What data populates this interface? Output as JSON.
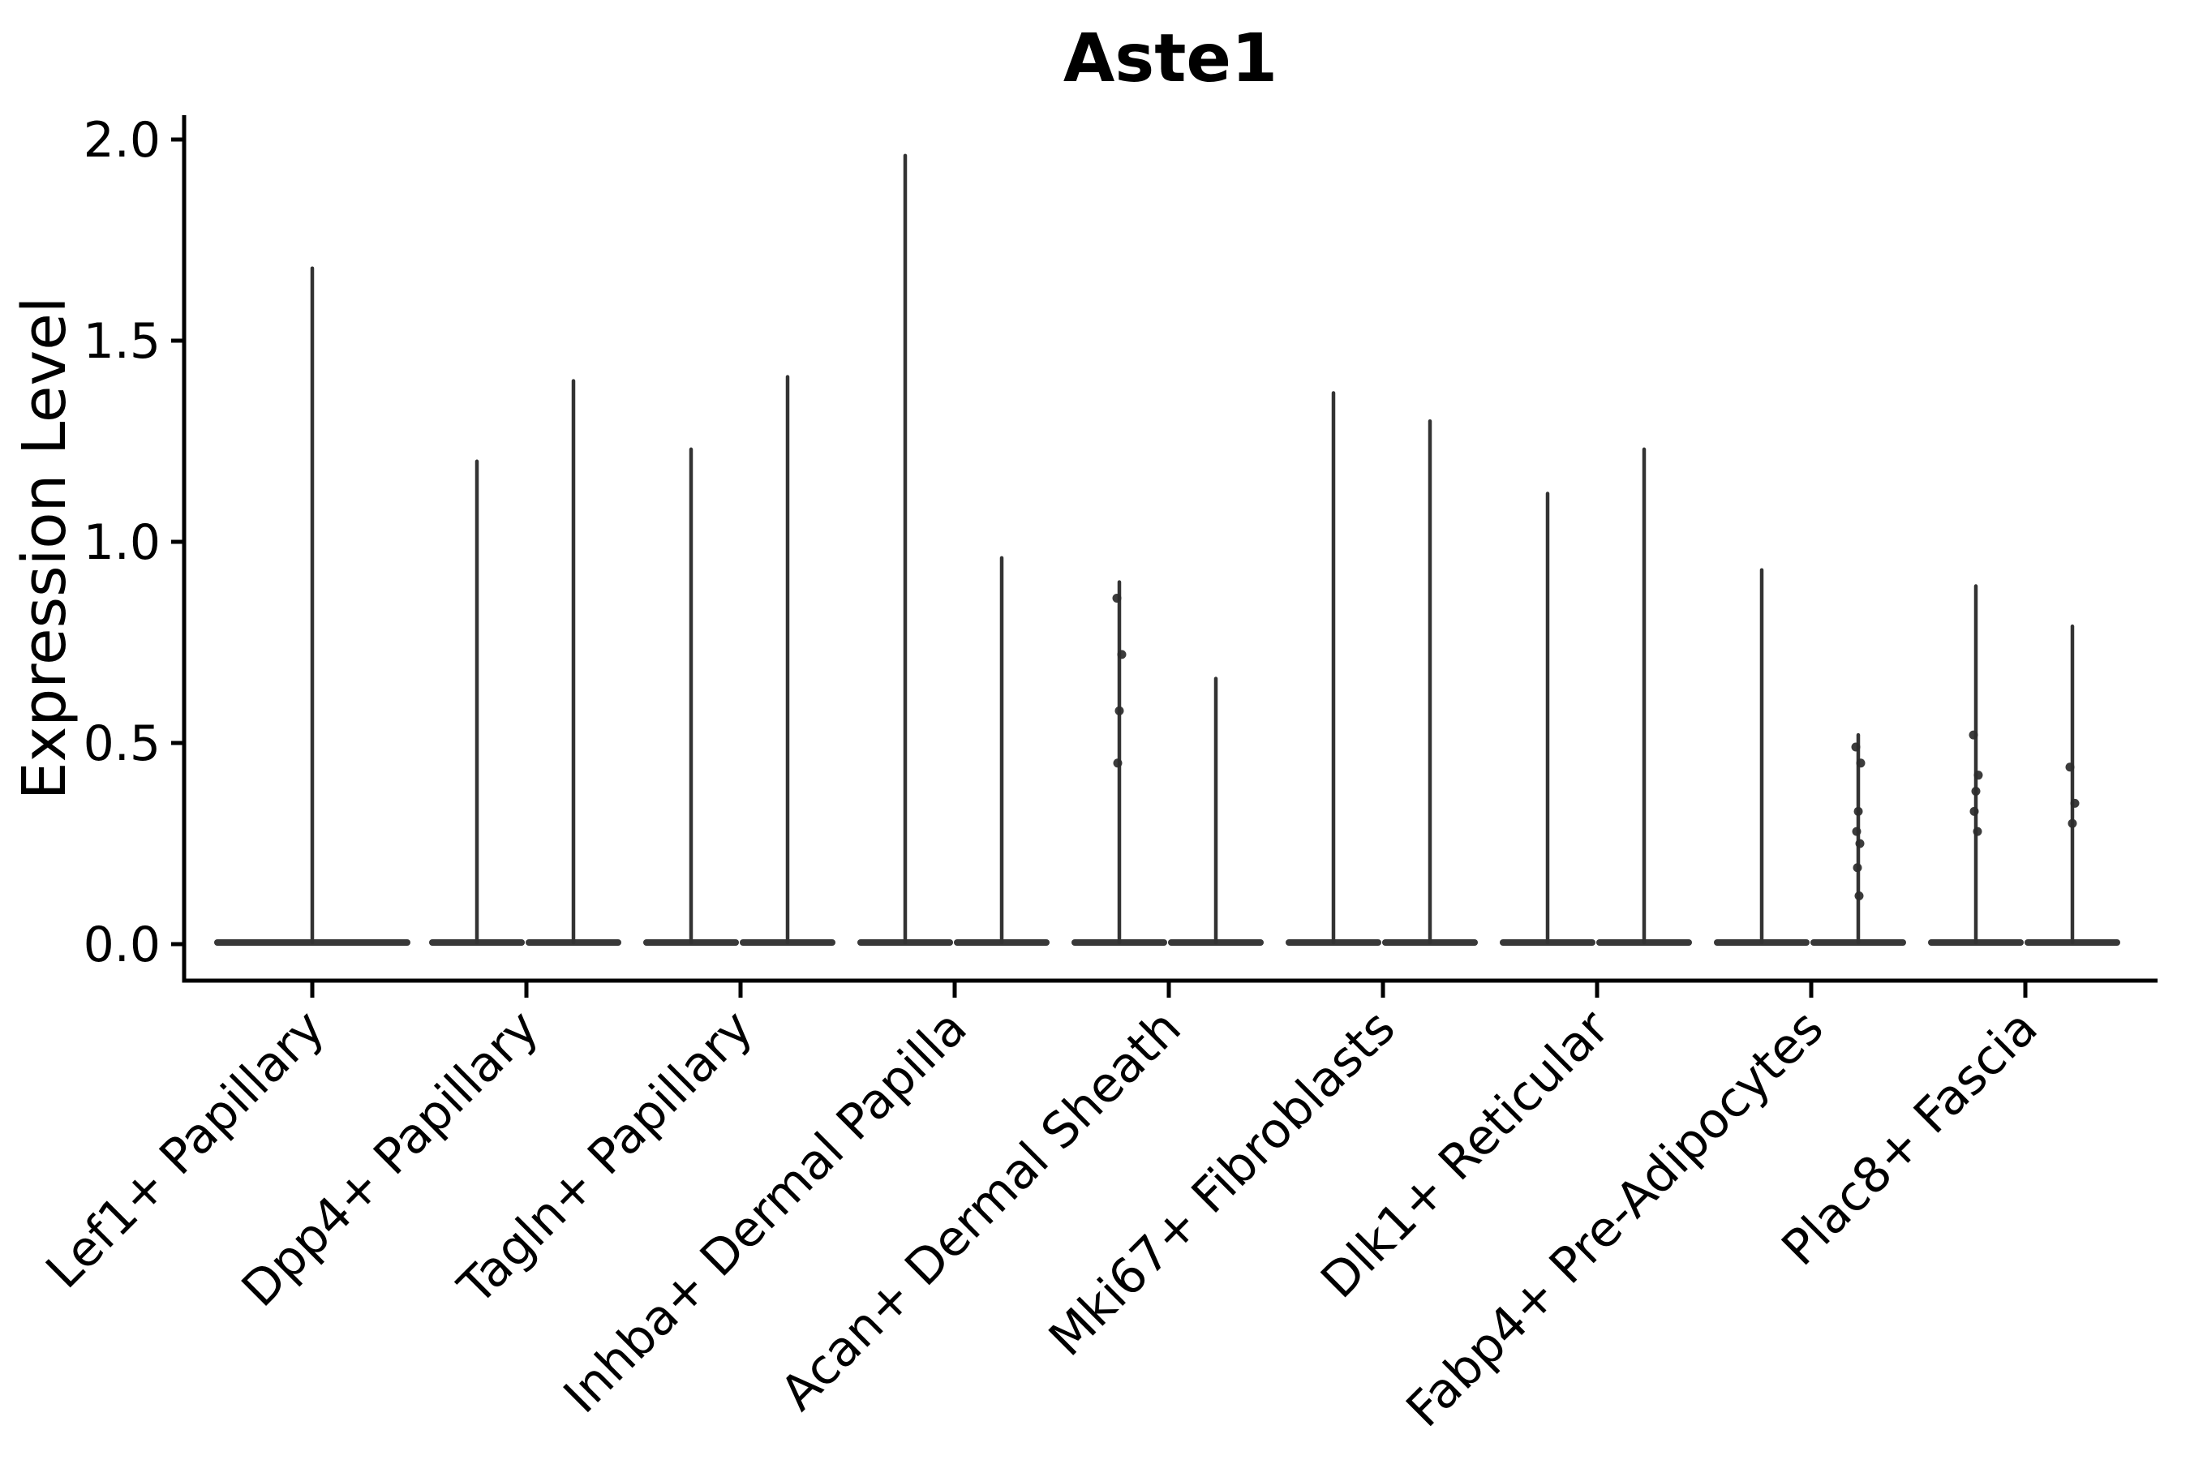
{
  "title": "Aste1",
  "axis": {
    "ylabel": "Expression Level",
    "ytick_labels": [
      "0.0",
      "0.5",
      "1.0",
      "1.5",
      "2.0"
    ]
  },
  "colors": {
    "background": "#ffffff",
    "axis": "#000000",
    "text": "#000000",
    "violin": "#333333",
    "base": "#383838",
    "dot": "#2b2b2b"
  },
  "chart_data": {
    "type": "violin",
    "title": "Aste1",
    "xlabel": "",
    "ylabel": "Expression Level",
    "ylim": [
      -0.09,
      2.06
    ],
    "yticks": [
      0.0,
      0.5,
      1.0,
      1.5,
      2.0
    ],
    "grid": false,
    "legend_position": "none",
    "x_label_rotation_deg": 45,
    "description": "Zero-inflated expression violins: each violin is a wide flat lens at 0 with a thin needle up to its max expression value; categories 2-9 contain two side-by-side violins, category 1 a single centered violin.",
    "baseline_value": 0.0,
    "categories": [
      "Lef1+ Papillary",
      "Dpp4+ Papillary",
      "Tagln+ Papillary",
      "Inhba+ Dermal Papilla",
      "Acan+ Dermal Sheath",
      "Mki67+ Fibroblasts",
      "Dlk1+ Reticular",
      "Fabp4+ Pre-Adipocytes",
      "Plac8+ Fascia"
    ],
    "groups": [
      {
        "label": "Lef1+ Papillary",
        "violins": [
          {
            "position": "center",
            "max": 1.68,
            "dots": []
          }
        ]
      },
      {
        "label": "Dpp4+ Papillary",
        "violins": [
          {
            "position": "left",
            "max": 1.2,
            "dots": []
          },
          {
            "position": "right",
            "max": 1.4,
            "dots": []
          }
        ]
      },
      {
        "label": "Tagln+ Papillary",
        "violins": [
          {
            "position": "left",
            "max": 1.23,
            "dots": []
          },
          {
            "position": "right",
            "max": 1.41,
            "dots": []
          }
        ]
      },
      {
        "label": "Inhba+ Dermal Papilla",
        "violins": [
          {
            "position": "left",
            "max": 1.96,
            "dots": []
          },
          {
            "position": "right",
            "max": 0.96,
            "dots": []
          }
        ]
      },
      {
        "label": "Acan+ Dermal Sheath",
        "violins": [
          {
            "position": "left",
            "max": 0.9,
            "dots": [
              0.86,
              0.72,
              0.58,
              0.45
            ]
          },
          {
            "position": "right",
            "max": 0.66,
            "dots": []
          }
        ]
      },
      {
        "label": "Mki67+ Fibroblasts",
        "violins": [
          {
            "position": "left",
            "max": 1.37,
            "dots": []
          },
          {
            "position": "right",
            "max": 1.3,
            "dots": []
          }
        ]
      },
      {
        "label": "Dlk1+ Reticular",
        "violins": [
          {
            "position": "left",
            "max": 1.12,
            "dots": []
          },
          {
            "position": "right",
            "max": 1.23,
            "dots": []
          }
        ]
      },
      {
        "label": "Fabp4+ Pre-Adipocytes",
        "violins": [
          {
            "position": "left",
            "max": 0.93,
            "dots": []
          },
          {
            "position": "right",
            "max": 0.52,
            "dots": [
              0.49,
              0.45,
              0.33,
              0.28,
              0.25,
              0.19,
              0.12
            ]
          }
        ]
      },
      {
        "label": "Plac8+ Fascia",
        "violins": [
          {
            "position": "left",
            "max": 0.89,
            "dots": [
              0.52,
              0.42,
              0.38,
              0.33,
              0.28
            ]
          },
          {
            "position": "right",
            "max": 0.79,
            "dots": [
              0.44,
              0.35,
              0.3
            ]
          }
        ]
      }
    ]
  }
}
